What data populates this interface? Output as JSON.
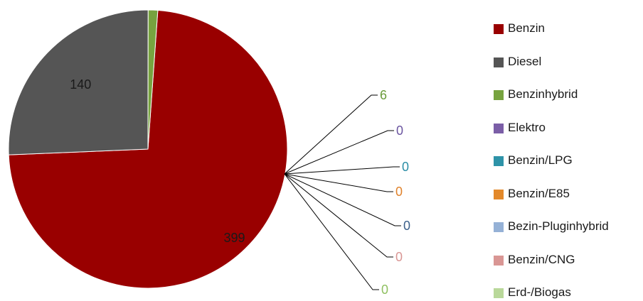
{
  "chart_data": {
    "type": "pie",
    "title": "",
    "legend_position": "right",
    "series": [
      {
        "name": "Benzin",
        "value": 399,
        "color": "#990000",
        "label_color": "#1a1a1a"
      },
      {
        "name": "Diesel",
        "value": 140,
        "color": "#555555",
        "label_color": "#1a1a1a"
      },
      {
        "name": "Benzinhybrid",
        "value": 6,
        "color": "#77a33f",
        "label_color": "#6a9b3a"
      },
      {
        "name": "Elektro",
        "value": 0,
        "color": "#7b5ea7",
        "label_color": "#6b55a0"
      },
      {
        "name": "Benzin/LPG",
        "value": 0,
        "color": "#2e93a8",
        "label_color": "#2b8ea6"
      },
      {
        "name": "Benzin/E85",
        "value": 0,
        "color": "#e3892a",
        "label_color": "#e0822b"
      },
      {
        "name": "Bezin-Pluginhybrid",
        "value": 0,
        "color": "#95b1d6",
        "label_color": "#3b5f8a"
      },
      {
        "name": "Benzin/CNG",
        "value": 0,
        "color": "#d99694",
        "label_color": "#d99694"
      },
      {
        "name": "Erd-/Biogas",
        "value": 0,
        "color": "#b9d89a",
        "label_color": "#8fc060"
      }
    ]
  }
}
